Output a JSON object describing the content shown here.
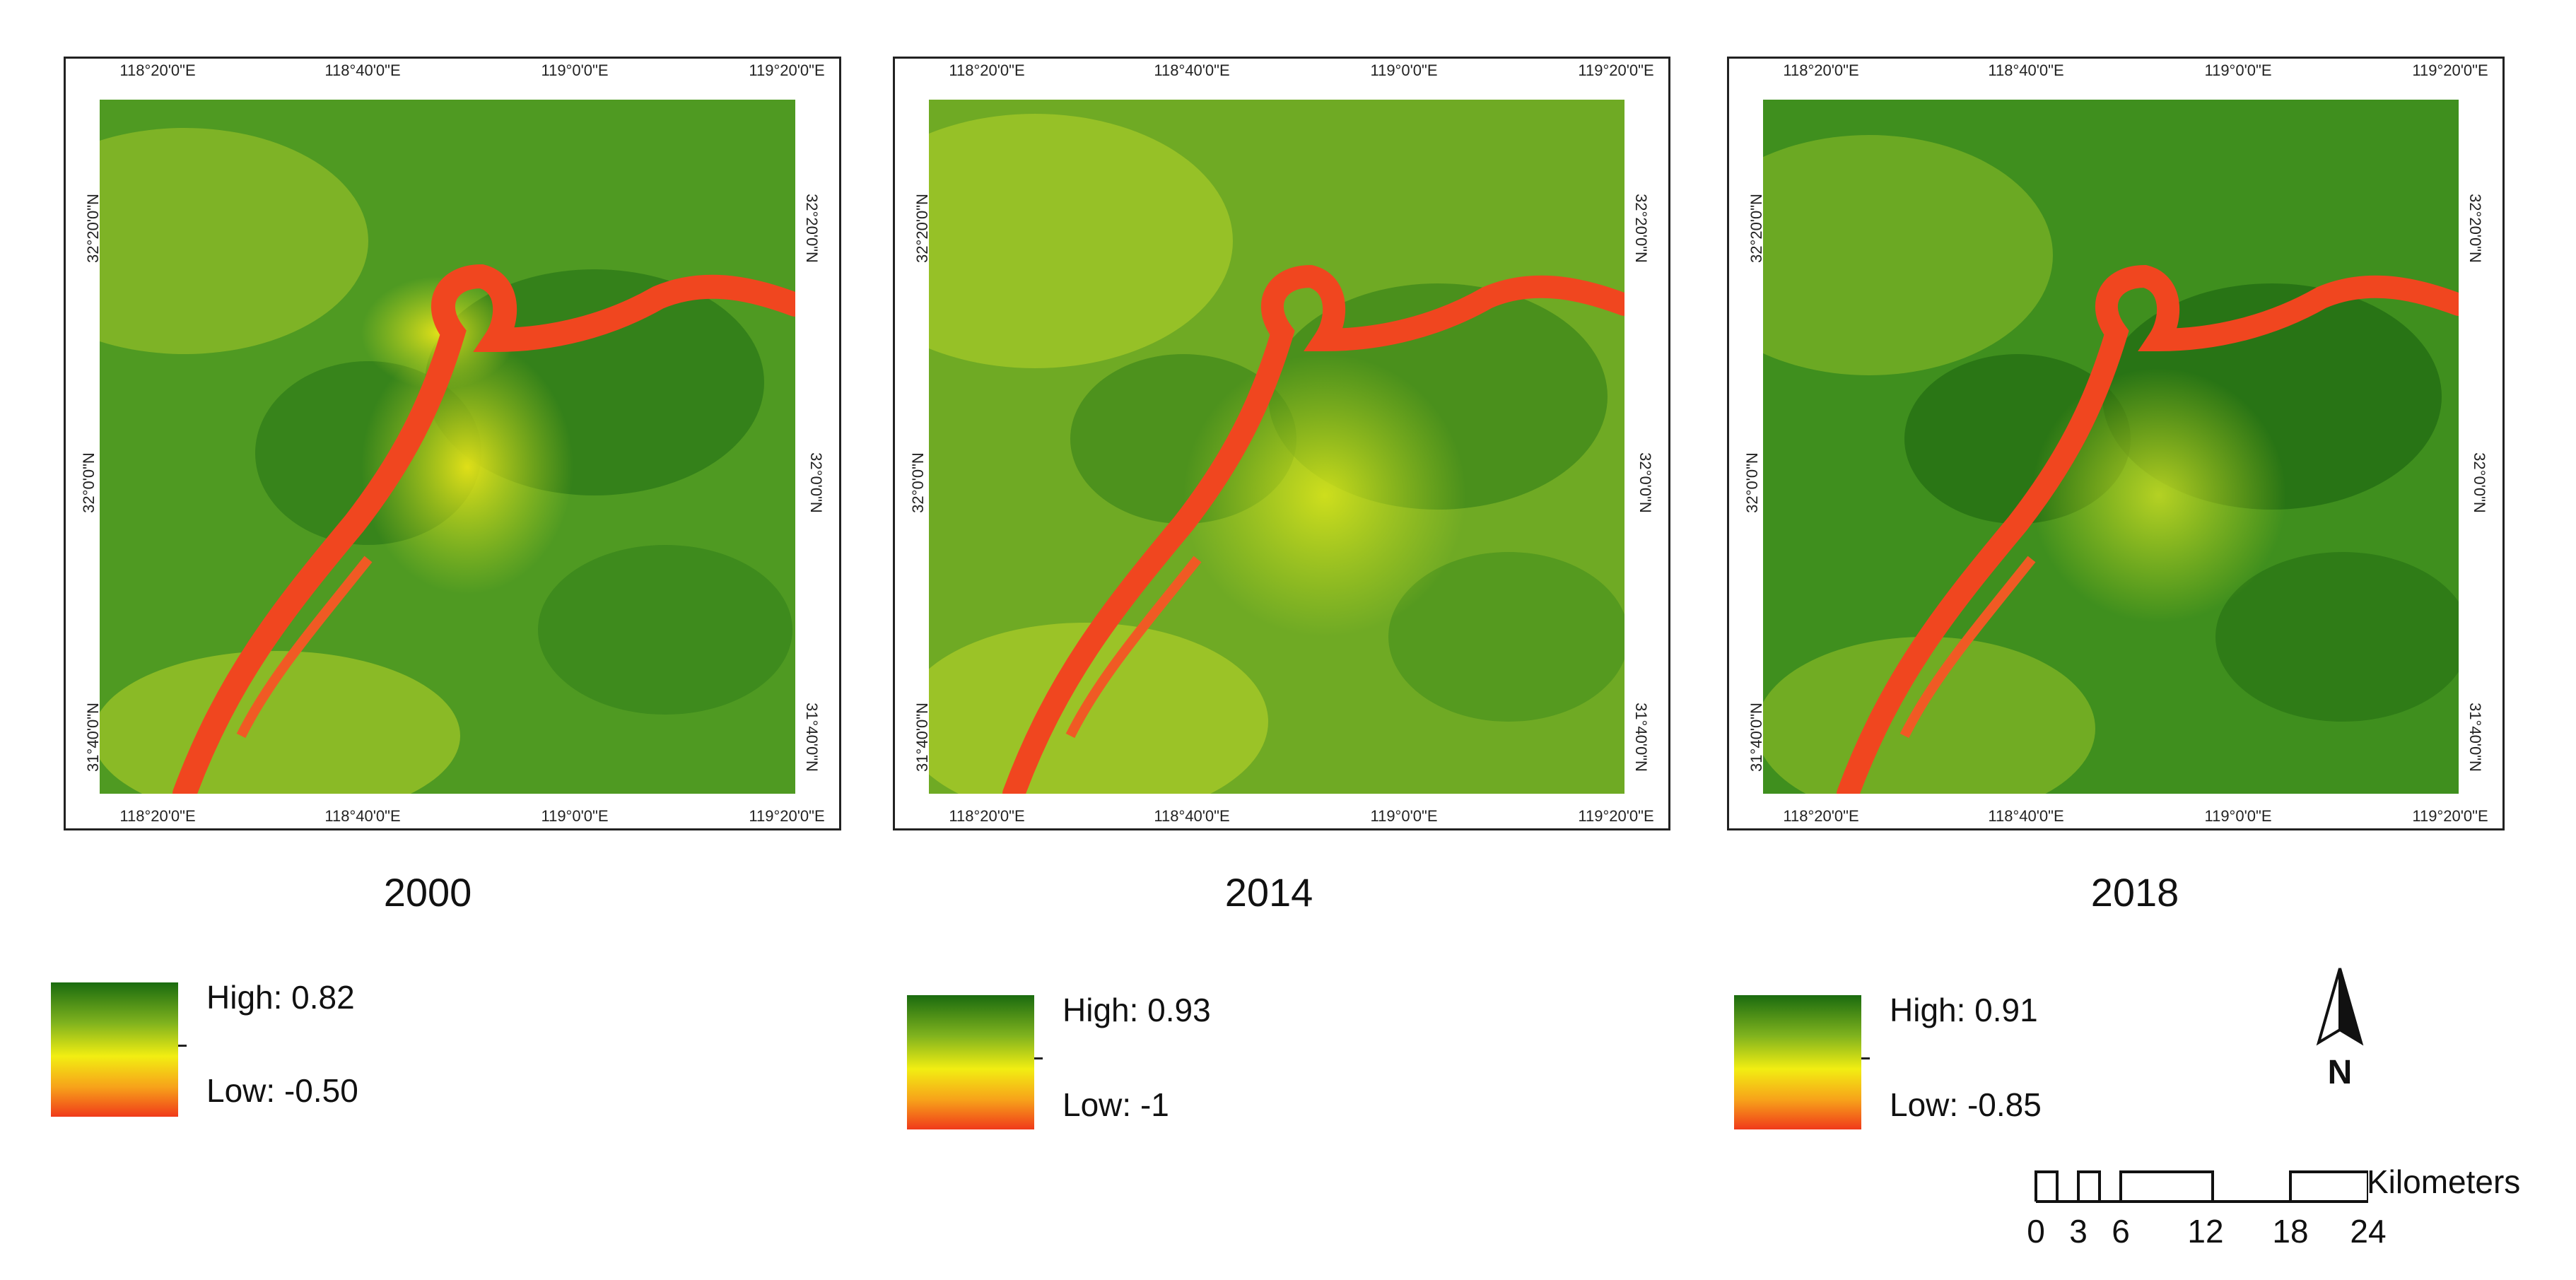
{
  "maps": [
    {
      "year": "2000",
      "legend": {
        "high": "High: 0.82",
        "low": "Low: -0.50"
      },
      "ticks": {
        "top": [
          "118°20'0\"E",
          "118°40'0\"E",
          "119°0'0\"E",
          "119°20'0\"E"
        ],
        "bottom": [
          "118°20'0\"E",
          "118°40'0\"E",
          "119°0'0\"E",
          "119°20'0\"E"
        ],
        "left": [
          "32°20'0\"N",
          "32°0'0\"N",
          "31°40'0\"N"
        ],
        "right": [
          "32°20'0\"N",
          "32°0'0\"N",
          "31°40'0\"N"
        ]
      }
    },
    {
      "year": "2014",
      "legend": {
        "high": "High: 0.93",
        "low": "Low: -1"
      },
      "ticks": {
        "top": [
          "118°20'0\"E",
          "118°40'0\"E",
          "119°0'0\"E",
          "119°20'0\"E"
        ],
        "bottom": [
          "118°20'0\"E",
          "118°40'0\"E",
          "119°0'0\"E",
          "119°20'0\"E"
        ],
        "left": [
          "32°20'0\"N",
          "32°0'0\"N",
          "31°40'0\"N"
        ],
        "right": [
          "32°20'0\"N",
          "32°0'0\"N",
          "31°40'0\"N"
        ]
      }
    },
    {
      "year": "2018",
      "legend": {
        "high": "High: 0.91",
        "low": "Low: -0.85"
      },
      "ticks": {
        "top": [
          "118°20'0\"E",
          "118°40'0\"E",
          "119°0'0\"E",
          "119°20'0\"E"
        ],
        "bottom": [
          "118°20'0\"E",
          "118°40'0\"E",
          "119°0'0\"E",
          "119°20'0\"E"
        ],
        "left": [
          "32°20'0\"N",
          "32°0'0\"N",
          "31°40'0\"N"
        ],
        "right": [
          "32°20'0\"N",
          "32°0'0\"N",
          "31°40'0\"N"
        ]
      }
    }
  ],
  "north_arrow": {
    "label": "N"
  },
  "scale_bar": {
    "unit": "Kilometers",
    "marks": [
      "0",
      "3",
      "6",
      "12",
      "18",
      "24"
    ]
  },
  "colors": {
    "high": "#1a6b0f",
    "mid": "#f2ee12",
    "low": "#f03a1a",
    "river": "#f0461f"
  }
}
